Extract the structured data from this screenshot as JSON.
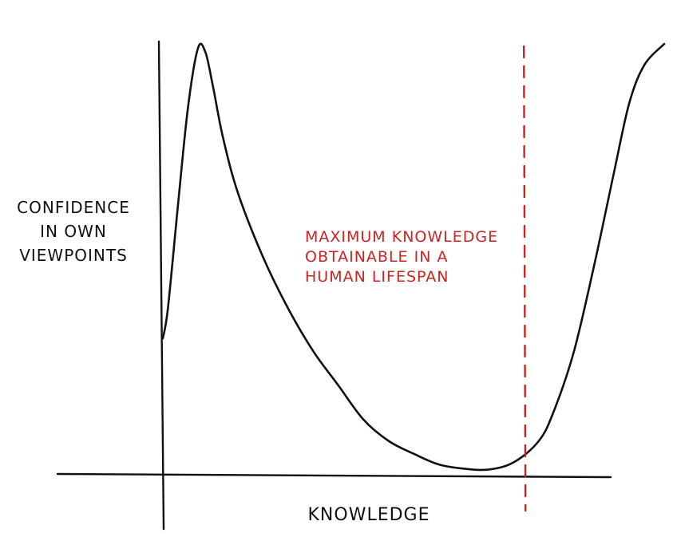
{
  "chart_data": {
    "type": "line",
    "title": "",
    "xlabel": "KNOWLEDGE",
    "ylabel_lines": [
      "CONFIDENCE",
      "IN OWN",
      "VIEWPOINTS"
    ],
    "xlim": [
      0,
      1
    ],
    "ylim": [
      0,
      1
    ],
    "grid": false,
    "legend": "none",
    "series": [
      {
        "points": [
          [
            0.0,
            0.31
          ],
          [
            0.01,
            0.38
          ],
          [
            0.03,
            0.62
          ],
          [
            0.05,
            0.85
          ],
          [
            0.07,
            0.99
          ],
          [
            0.085,
            0.98
          ],
          [
            0.1,
            0.9
          ],
          [
            0.12,
            0.78
          ],
          [
            0.15,
            0.65
          ],
          [
            0.2,
            0.5
          ],
          [
            0.25,
            0.38
          ],
          [
            0.3,
            0.28
          ],
          [
            0.35,
            0.2
          ],
          [
            0.4,
            0.12
          ],
          [
            0.45,
            0.07
          ],
          [
            0.5,
            0.04
          ],
          [
            0.55,
            0.015
          ],
          [
            0.6,
            0.005
          ],
          [
            0.65,
            0.003
          ],
          [
            0.7,
            0.02
          ],
          [
            0.75,
            0.07
          ],
          [
            0.78,
            0.14
          ],
          [
            0.82,
            0.28
          ],
          [
            0.86,
            0.48
          ],
          [
            0.9,
            0.7
          ],
          [
            0.93,
            0.86
          ],
          [
            0.96,
            0.95
          ],
          [
            1.0,
            1.0
          ]
        ]
      }
    ],
    "vertical_line": {
      "x": 0.72,
      "style": "dashed",
      "color": "#cc2222",
      "label_lines": [
        "MAXIMUM KNOWLEDGE",
        "OBTAINABLE IN A",
        "HUMAN LIFESPAN"
      ]
    },
    "colors": {
      "curve": "#111111",
      "axes": "#111111",
      "annotation": "#cc2222"
    }
  }
}
